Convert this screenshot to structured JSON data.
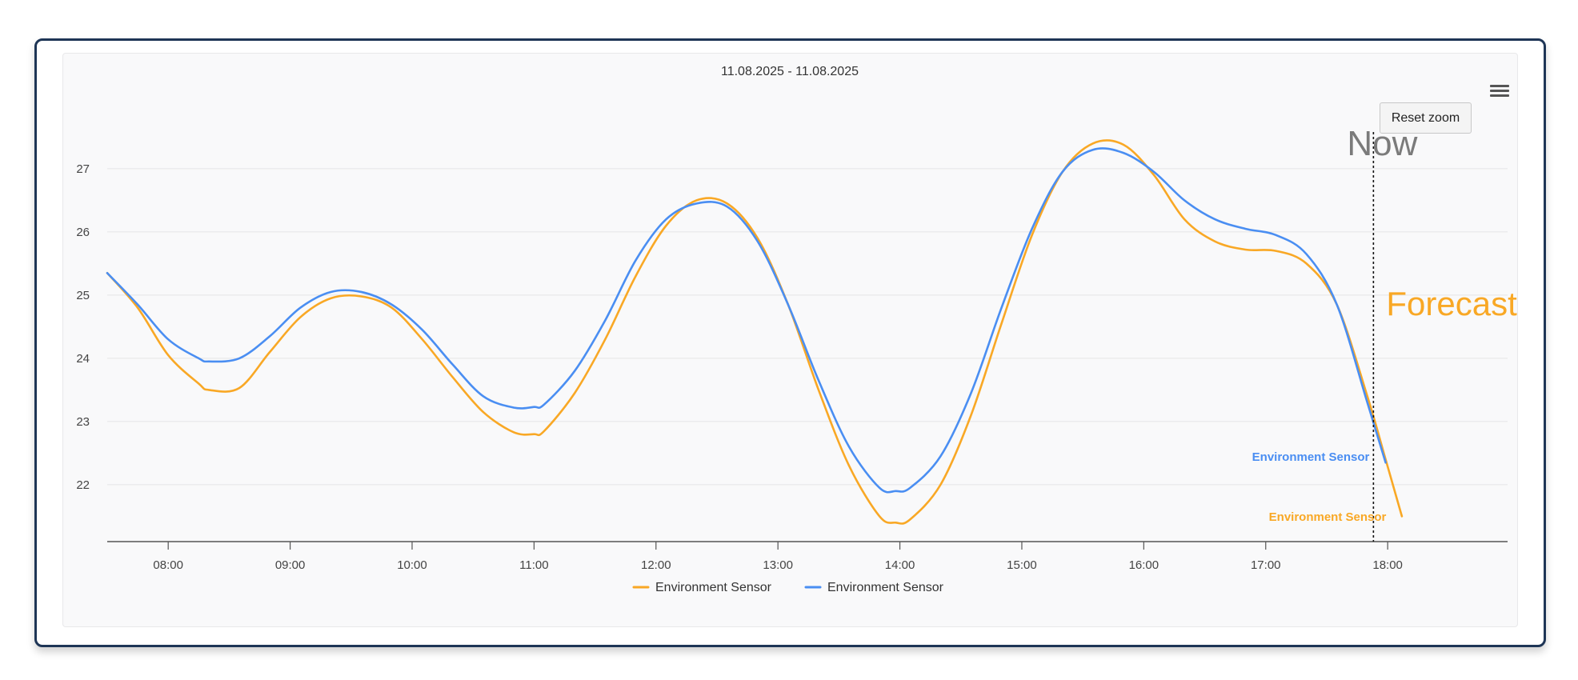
{
  "chart_data": {
    "type": "line",
    "title": "11.08.2025 - 11.08.2025",
    "xlabel": "",
    "ylabel": "",
    "x_ticks": [
      "08:00",
      "09:00",
      "10:00",
      "11:00",
      "12:00",
      "13:00",
      "14:00",
      "15:00",
      "16:00",
      "17:00",
      "18:00"
    ],
    "y_ticks": [
      22,
      23,
      24,
      25,
      26,
      27
    ],
    "xlim": [
      "07:30",
      "18:59"
    ],
    "ylim": [
      21.1,
      28.1
    ],
    "grid": "horizontal",
    "legend_position": "bottom-center",
    "series": [
      {
        "name": "Environment Sensor",
        "color": "#f9a825",
        "points": [
          [
            "07:30",
            25.35
          ],
          [
            "07:45",
            24.8
          ],
          [
            "08:00",
            24.05
          ],
          [
            "08:15",
            23.6
          ],
          [
            "08:20",
            23.5
          ],
          [
            "08:35",
            23.53
          ],
          [
            "08:50",
            24.1
          ],
          [
            "09:05",
            24.65
          ],
          [
            "09:20",
            24.95
          ],
          [
            "09:35",
            24.98
          ],
          [
            "09:50",
            24.8
          ],
          [
            "10:05",
            24.3
          ],
          [
            "10:20",
            23.7
          ],
          [
            "10:35",
            23.15
          ],
          [
            "10:50",
            22.83
          ],
          [
            "11:00",
            22.8
          ],
          [
            "11:05",
            22.85
          ],
          [
            "11:20",
            23.45
          ],
          [
            "11:35",
            24.3
          ],
          [
            "11:50",
            25.3
          ],
          [
            "12:05",
            26.1
          ],
          [
            "12:20",
            26.5
          ],
          [
            "12:35",
            26.45
          ],
          [
            "12:50",
            25.9
          ],
          [
            "13:05",
            24.85
          ],
          [
            "13:20",
            23.5
          ],
          [
            "13:35",
            22.3
          ],
          [
            "13:50",
            21.5
          ],
          [
            "13:58",
            21.4
          ],
          [
            "14:05",
            21.45
          ],
          [
            "14:20",
            22.0
          ],
          [
            "14:35",
            23.1
          ],
          [
            "14:50",
            24.55
          ],
          [
            "15:05",
            25.95
          ],
          [
            "15:20",
            26.95
          ],
          [
            "15:35",
            27.4
          ],
          [
            "15:50",
            27.38
          ],
          [
            "16:05",
            26.9
          ],
          [
            "16:20",
            26.2
          ],
          [
            "16:35",
            25.85
          ],
          [
            "16:50",
            25.72
          ],
          [
            "17:05",
            25.7
          ],
          [
            "17:20",
            25.5
          ],
          [
            "17:35",
            24.85
          ],
          [
            "17:50",
            23.4
          ],
          [
            "17:59",
            22.4
          ],
          [
            "18:07",
            21.5
          ]
        ]
      },
      {
        "name": "Environment Sensor",
        "color": "#4a8ef2",
        "points": [
          [
            "07:30",
            25.35
          ],
          [
            "07:45",
            24.85
          ],
          [
            "08:00",
            24.3
          ],
          [
            "08:15",
            24.0
          ],
          [
            "08:20",
            23.95
          ],
          [
            "08:35",
            24.0
          ],
          [
            "08:50",
            24.35
          ],
          [
            "09:05",
            24.8
          ],
          [
            "09:20",
            25.05
          ],
          [
            "09:35",
            25.05
          ],
          [
            "09:50",
            24.85
          ],
          [
            "10:05",
            24.45
          ],
          [
            "10:20",
            23.9
          ],
          [
            "10:35",
            23.4
          ],
          [
            "10:50",
            23.22
          ],
          [
            "11:00",
            23.23
          ],
          [
            "11:05",
            23.27
          ],
          [
            "11:20",
            23.8
          ],
          [
            "11:35",
            24.6
          ],
          [
            "11:50",
            25.55
          ],
          [
            "12:05",
            26.2
          ],
          [
            "12:20",
            26.45
          ],
          [
            "12:35",
            26.4
          ],
          [
            "12:50",
            25.85
          ],
          [
            "13:05",
            24.85
          ],
          [
            "13:20",
            23.65
          ],
          [
            "13:35",
            22.6
          ],
          [
            "13:50",
            21.95
          ],
          [
            "13:58",
            21.9
          ],
          [
            "14:05",
            21.95
          ],
          [
            "14:20",
            22.45
          ],
          [
            "14:35",
            23.45
          ],
          [
            "14:50",
            24.8
          ],
          [
            "15:05",
            26.05
          ],
          [
            "15:20",
            26.95
          ],
          [
            "15:35",
            27.3
          ],
          [
            "15:50",
            27.25
          ],
          [
            "16:05",
            26.95
          ],
          [
            "16:20",
            26.5
          ],
          [
            "16:35",
            26.2
          ],
          [
            "16:50",
            26.05
          ],
          [
            "17:05",
            25.95
          ],
          [
            "17:20",
            25.65
          ],
          [
            "17:35",
            24.85
          ],
          [
            "17:50",
            23.3
          ],
          [
            "17:59",
            22.35
          ]
        ]
      }
    ],
    "annotations": [
      {
        "text": "Now",
        "x": "17:53",
        "color": "#7b7b7b"
      },
      {
        "text": "Forecast",
        "color": "#f9a825"
      }
    ],
    "end_labels": [
      {
        "text": "Environment Sensor",
        "color": "#4a8ef2"
      },
      {
        "text": "Environment Sensor",
        "color": "#f9a825"
      }
    ]
  },
  "toolbar": {
    "reset_zoom_label": "Reset zoom",
    "menu_icon": "hamburger-menu-icon"
  }
}
